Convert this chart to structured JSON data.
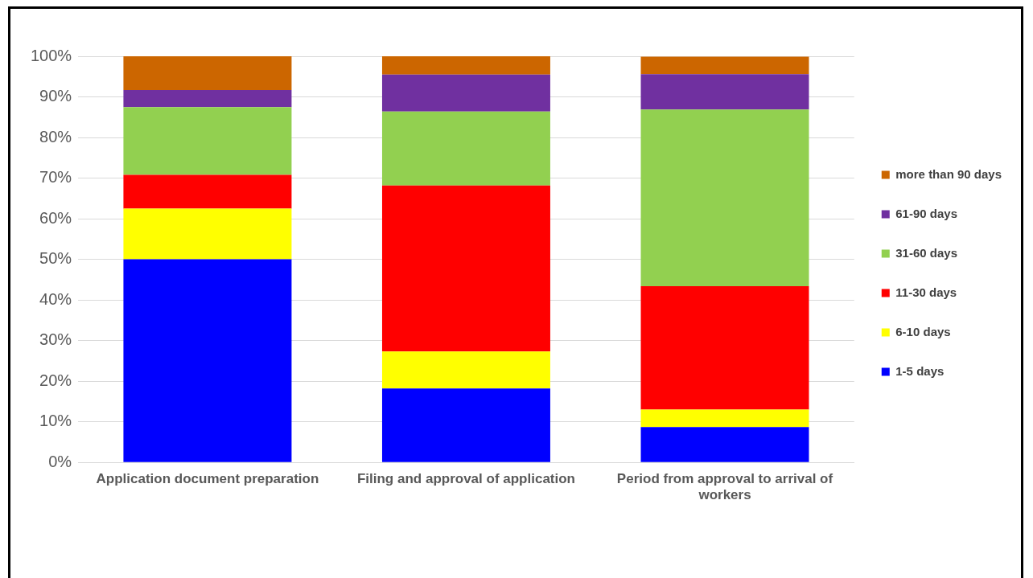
{
  "chart_data": {
    "type": "bar",
    "stacked": true,
    "categories": [
      "Application document preparation",
      "Filing and approval of application",
      "Period from approval to arrival of workers"
    ],
    "series": [
      {
        "name": "1-5 days",
        "color": "#0000ff",
        "values": [
          50,
          18.2,
          8.7
        ]
      },
      {
        "name": "6-10 days",
        "color": "#ffff00",
        "values": [
          12.5,
          9.1,
          4.3
        ]
      },
      {
        "name": "11-30 days",
        "color": "#ff0000",
        "values": [
          8.3,
          40.9,
          30.4
        ]
      },
      {
        "name": "31-60 days",
        "color": "#92d050",
        "values": [
          16.7,
          18.2,
          43.5
        ]
      },
      {
        "name": "61-90 days",
        "color": "#7030a0",
        "values": [
          4.2,
          9.1,
          8.7
        ]
      },
      {
        "name": "more than 90 days",
        "color": "#cc6600",
        "values": [
          8.3,
          4.5,
          4.3
        ]
      }
    ],
    "ylim": [
      0,
      100
    ],
    "yticks": [
      {
        "value": 0,
        "label": "0%"
      },
      {
        "value": 10,
        "label": "10%"
      },
      {
        "value": 20,
        "label": "20%"
      },
      {
        "value": 30,
        "label": "30%"
      },
      {
        "value": 40,
        "label": "40%"
      },
      {
        "value": 50,
        "label": "50%"
      },
      {
        "value": 60,
        "label": "60%"
      },
      {
        "value": 70,
        "label": "70%"
      },
      {
        "value": 80,
        "label": "80%"
      },
      {
        "value": 90,
        "label": "90%"
      },
      {
        "value": 100,
        "label": "100%"
      }
    ],
    "grid": "y",
    "legend": "right"
  }
}
